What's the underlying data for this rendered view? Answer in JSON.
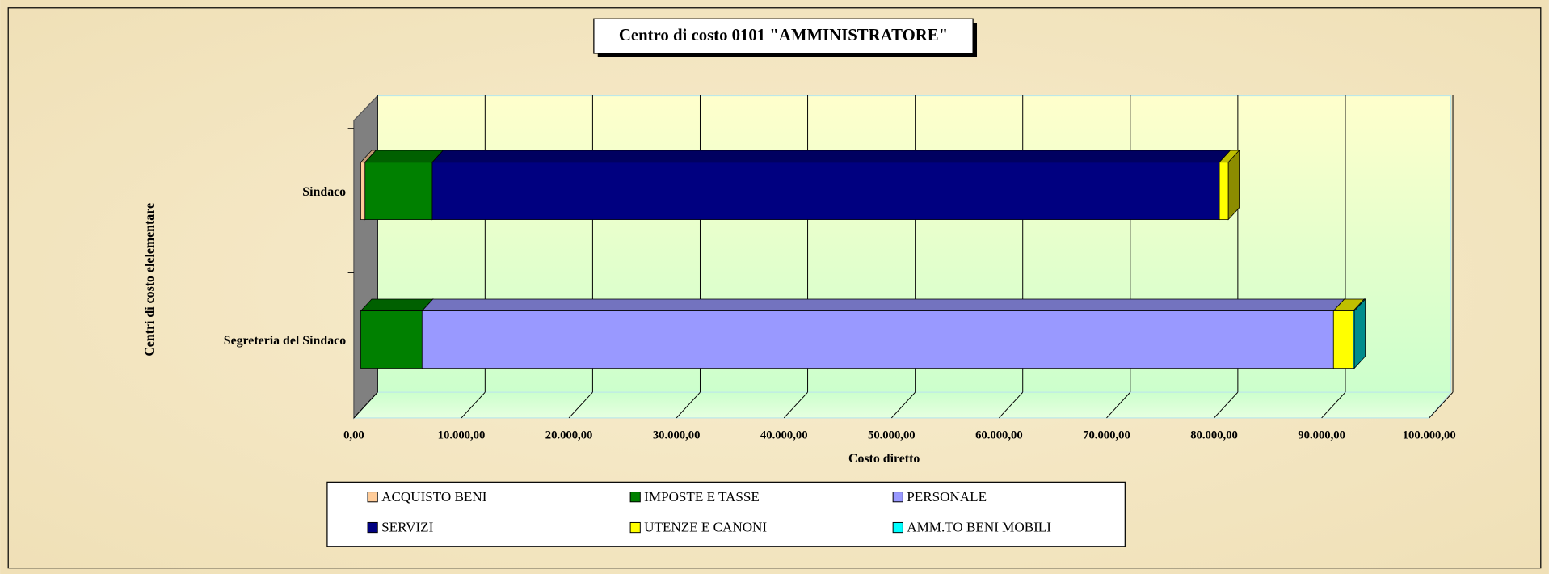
{
  "chart_data": {
    "type": "bar",
    "orientation": "horizontal",
    "stacked": true,
    "title": "Centro di costo  0101 \"AMMINISTRATORE\"",
    "xlabel": "Costo diretto",
    "ylabel": "Centri di costo elelementare",
    "categories": [
      "Sindaco",
      "Segreteria del Sindaco"
    ],
    "series": [
      {
        "name": "ACQUISTO BENI",
        "color": "#FFCC99",
        "values": [
          400,
          0
        ]
      },
      {
        "name": "IMPOSTE E TASSE",
        "color": "#008000",
        "values": [
          6250,
          5700
        ]
      },
      {
        "name": "PERSONALE",
        "color": "#9999FF",
        "values": [
          0,
          84760
        ]
      },
      {
        "name": "SERVIZI",
        "color": "#000080",
        "values": [
          73200,
          0
        ]
      },
      {
        "name": "UTENZE E CANONI",
        "color": "#FFFF00",
        "values": [
          830,
          1840
        ]
      },
      {
        "name": "AMM.TO BENI MOBILI",
        "color": "#00FFFF",
        "values": [
          0,
          100
        ]
      }
    ],
    "xlim": [
      0,
      100000
    ],
    "xticks": [
      {
        "value": 0,
        "label": "0,00"
      },
      {
        "value": 10000,
        "label": "10.000,00"
      },
      {
        "value": 20000,
        "label": "20.000,00"
      },
      {
        "value": 30000,
        "label": "30.000,00"
      },
      {
        "value": 40000,
        "label": "40.000,00"
      },
      {
        "value": 50000,
        "label": "50.000,00"
      },
      {
        "value": 60000,
        "label": "60.000,00"
      },
      {
        "value": 70000,
        "label": "70.000,00"
      },
      {
        "value": 80000,
        "label": "80.000,00"
      },
      {
        "value": 90000,
        "label": "90.000,00"
      },
      {
        "value": 100000,
        "label": "100.000,00"
      }
    ],
    "grid": true,
    "legend": "bottom"
  }
}
